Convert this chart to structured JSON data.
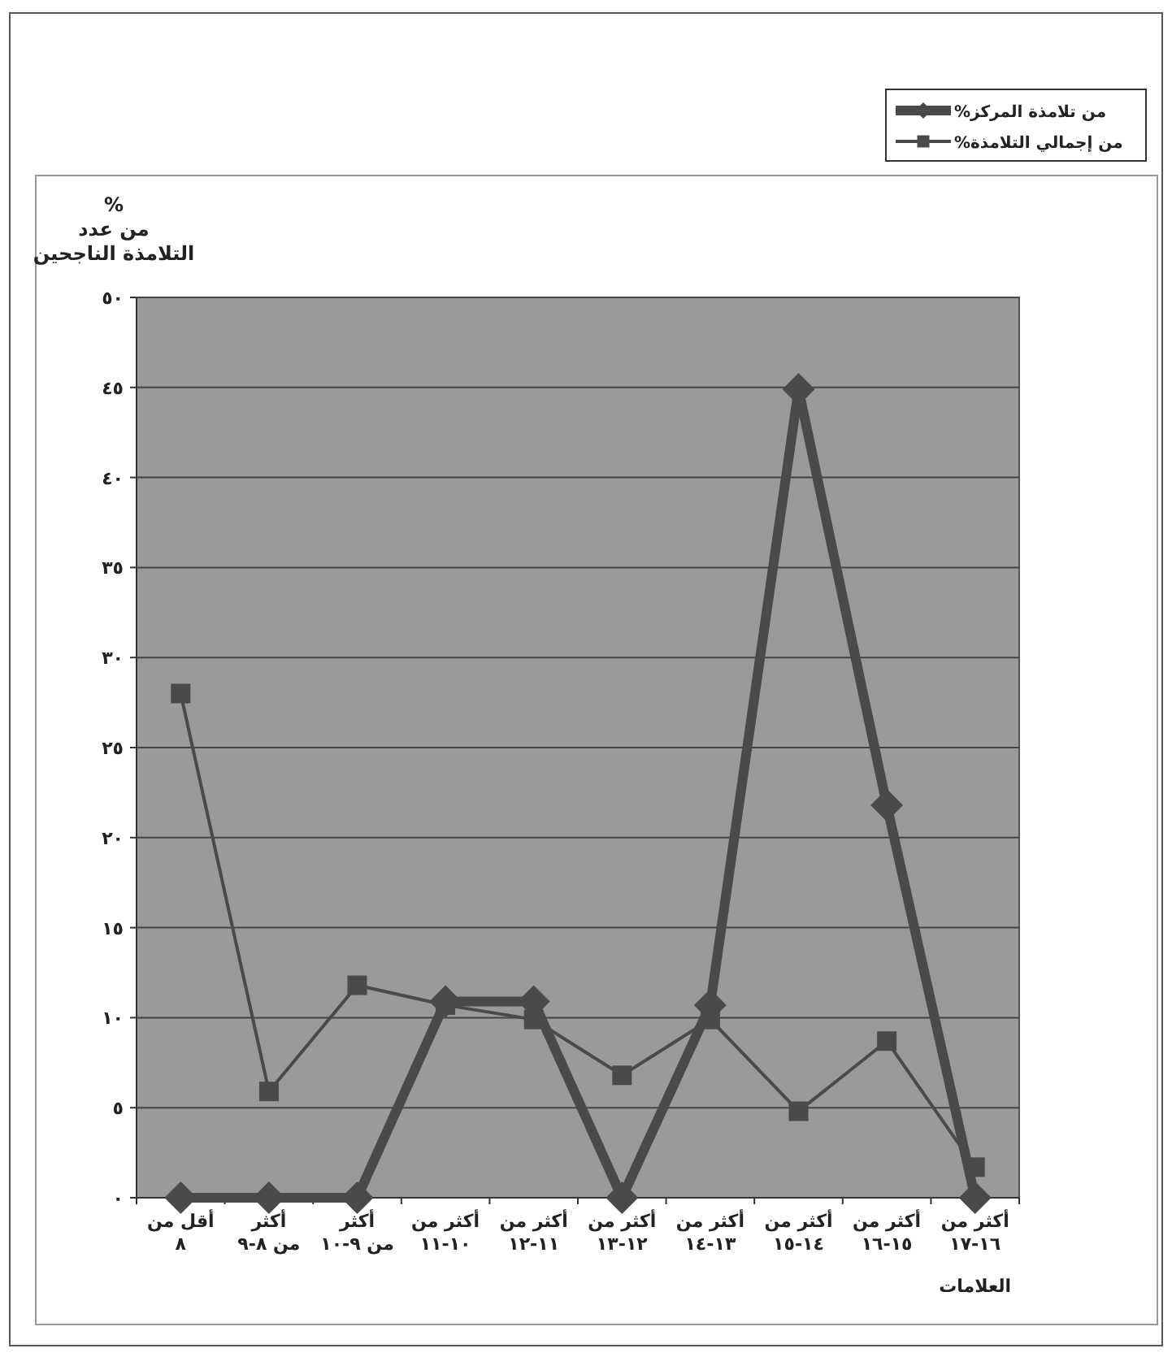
{
  "chart_data": {
    "type": "line",
    "xlabel": "العلامات",
    "ylabel": "%\nمن عدد\nالتلامذة الناجحين",
    "categories": [
      "أقل من\n٨",
      "أكثر\nمن ٨-٩",
      "أكثر\nمن ٩-١٠",
      "أكثر من\n١٠-١١",
      "أكثر من\n١١-١٢",
      "أكثر من\n١٢-١٣",
      "أكثر من\n١٣-١٤",
      "أكثر من\n١٤-١٥",
      "أكثر من\n١٥-١٦",
      "أكثر من\n١٦-١٧"
    ],
    "series": [
      {
        "name": "من تلامذة المركز%",
        "color": "#4a4a4a",
        "marker": "diamond",
        "values": [
          0,
          0,
          0,
          10.9,
          10.9,
          0,
          10.7,
          44.9,
          21.8,
          0
        ]
      },
      {
        "name": "من إجمالي التلامذة%",
        "color": "#4a4a4a",
        "marker": "square",
        "values": [
          28,
          5.9,
          11.8,
          10.7,
          9.9,
          6.8,
          9.9,
          4.8,
          8.7,
          1.7
        ]
      }
    ],
    "ylim": [
      0,
      50
    ],
    "yticks": [
      {
        "value": 0,
        "label": "٠"
      },
      {
        "value": 5,
        "label": "٥"
      },
      {
        "value": 10,
        "label": "١٠"
      },
      {
        "value": 15,
        "label": "١٥"
      },
      {
        "value": 20,
        "label": "٢٠"
      },
      {
        "value": 25,
        "label": "٢٥"
      },
      {
        "value": 30,
        "label": "٣٠"
      },
      {
        "value": 35,
        "label": "٣٥"
      },
      {
        "value": 40,
        "label": "٤٠"
      },
      {
        "value": 45,
        "label": "٤٥"
      },
      {
        "value": 50,
        "label": "٥٠"
      }
    ],
    "grid": "y",
    "legend": "top right"
  }
}
